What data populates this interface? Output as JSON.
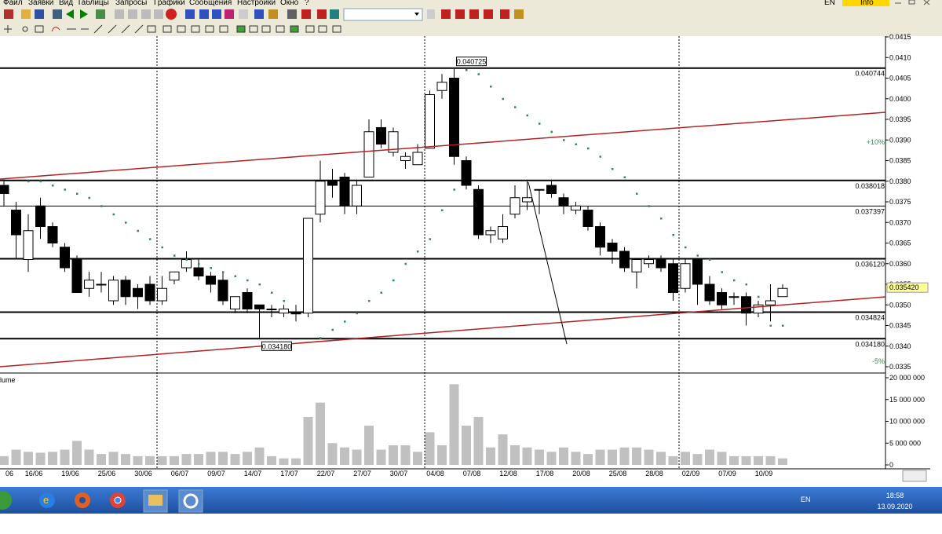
{
  "menu": [
    "Файл",
    "Заявки",
    "Вид",
    "Таблицы",
    "Запросы",
    "Графики",
    "Сообщения",
    "Настройки",
    "Окно",
    "?"
  ],
  "menu_right": {
    "lang": "EN",
    "info": "Info"
  },
  "chart_data": {
    "type": "candlestick",
    "up_color": "#ffffff",
    "down_color": "#000000",
    "categories": [
      "06",
      null,
      "16/06",
      null,
      null,
      "19/06",
      null,
      null,
      "25/06",
      null,
      null,
      "30/06",
      null,
      null,
      "06/07",
      null,
      null,
      "09/07",
      null,
      null,
      "14/07",
      null,
      null,
      "17/07",
      null,
      null,
      "22/07",
      null,
      null,
      "27/07",
      null,
      null,
      "30/07",
      null,
      null,
      "04/08",
      null,
      null,
      "07/08",
      null,
      null,
      "12/08",
      null,
      null,
      "17/08",
      null,
      null,
      "20/08",
      null,
      null,
      "25/08",
      null,
      null,
      "28/08",
      null,
      null,
      "02/09",
      null,
      null,
      "07/09",
      null,
      null,
      "10/09",
      null,
      null
    ],
    "ohlc": [
      [
        0.0379,
        0.038,
        0.0374,
        0.0377
      ],
      [
        0.0373,
        0.0375,
        0.0361,
        0.0367
      ],
      [
        0.0361,
        0.0372,
        0.0358,
        0.0368
      ],
      [
        0.0374,
        0.0376,
        0.0366,
        0.0369
      ],
      [
        0.0369,
        0.037,
        0.0364,
        0.0365
      ],
      [
        0.0364,
        0.0365,
        0.0358,
        0.0359
      ],
      [
        0.0361,
        0.0362,
        0.0353,
        0.0353
      ],
      [
        0.0354,
        0.0358,
        0.0352,
        0.0356
      ],
      [
        0.0355,
        0.0358,
        0.0353,
        0.0355
      ],
      [
        0.0351,
        0.0357,
        0.035,
        0.0356
      ],
      [
        0.0356,
        0.0357,
        0.035,
        0.0352
      ],
      [
        0.0354,
        0.0355,
        0.0349,
        0.0352
      ],
      [
        0.0355,
        0.0357,
        0.035,
        0.0351
      ],
      [
        0.0351,
        0.0357,
        0.035,
        0.0354
      ],
      [
        0.0356,
        0.0358,
        0.0355,
        0.0358
      ],
      [
        0.0359,
        0.0363,
        0.0358,
        0.0361
      ],
      [
        0.0359,
        0.0361,
        0.0356,
        0.0357
      ],
      [
        0.0357,
        0.0358,
        0.0353,
        0.0355
      ],
      [
        0.0356,
        0.0358,
        0.035,
        0.0351
      ],
      [
        0.0349,
        0.0352,
        0.0348,
        0.0352
      ],
      [
        0.0353,
        0.0354,
        0.0348,
        0.0349
      ],
      [
        0.035,
        0.035,
        0.03418,
        0.0349
      ],
      [
        0.0349,
        0.035,
        0.0347,
        0.0349
      ],
      [
        0.0348,
        0.035,
        0.0347,
        0.0349
      ],
      [
        0.0348,
        0.035,
        0.0346,
        0.0348
      ],
      [
        0.0348,
        0.0371,
        0.0347,
        0.0371
      ],
      [
        0.0372,
        0.0385,
        0.037,
        0.038
      ],
      [
        0.038,
        0.0383,
        0.0376,
        0.0379
      ],
      [
        0.0381,
        0.0382,
        0.0372,
        0.0374
      ],
      [
        0.0374,
        0.038,
        0.0372,
        0.0379
      ],
      [
        0.0381,
        0.0395,
        0.0381,
        0.0392
      ],
      [
        0.0393,
        0.0395,
        0.0388,
        0.0389
      ],
      [
        0.0387,
        0.0393,
        0.0386,
        0.0392
      ],
      [
        0.0385,
        0.0387,
        0.0383,
        0.0386
      ],
      [
        0.0384,
        0.0389,
        0.0384,
        0.0387
      ],
      [
        0.0388,
        0.0402,
        0.0388,
        0.0401
      ],
      [
        0.0402,
        0.0406,
        0.04,
        0.0404
      ],
      [
        0.0405,
        0.040725,
        0.0384,
        0.0386
      ],
      [
        0.0385,
        0.0386,
        0.0378,
        0.0379
      ],
      [
        0.0378,
        0.0379,
        0.0366,
        0.0367
      ],
      [
        0.0367,
        0.0369,
        0.0365,
        0.0368
      ],
      [
        0.0366,
        0.0372,
        0.0365,
        0.0369
      ],
      [
        0.0372,
        0.0379,
        0.0371,
        0.0376
      ],
      [
        0.0375,
        0.038,
        0.0373,
        0.0376
      ],
      [
        0.0378,
        0.0378,
        0.0372,
        0.0378
      ],
      [
        0.0379,
        0.038,
        0.0376,
        0.0377
      ],
      [
        0.0376,
        0.0377,
        0.0372,
        0.0374
      ],
      [
        0.0373,
        0.0375,
        0.0372,
        0.0374
      ],
      [
        0.0373,
        0.0374,
        0.0368,
        0.0369
      ],
      [
        0.0369,
        0.037,
        0.0362,
        0.0364
      ],
      [
        0.0365,
        0.0366,
        0.036,
        0.0363
      ],
      [
        0.0363,
        0.0364,
        0.0358,
        0.0359
      ],
      [
        0.0358,
        0.0361,
        0.0354,
        0.0361
      ],
      [
        0.036,
        0.0362,
        0.0359,
        0.0361
      ],
      [
        0.0361,
        0.0362,
        0.0358,
        0.0359
      ],
      [
        0.036,
        0.0361,
        0.0351,
        0.0353
      ],
      [
        0.0354,
        0.0361,
        0.0353,
        0.036
      ],
      [
        0.0361,
        0.0361,
        0.035,
        0.0355
      ],
      [
        0.0355,
        0.0357,
        0.035,
        0.0351
      ],
      [
        0.0353,
        0.0354,
        0.0349,
        0.035
      ],
      [
        0.0352,
        0.0353,
        0.035,
        0.0352
      ],
      [
        0.0352,
        0.0353,
        0.0345,
        0.0348
      ],
      [
        0.0348,
        0.0351,
        0.0347,
        0.035
      ],
      [
        0.035,
        0.0355,
        0.0346,
        0.0351
      ],
      [
        0.0352,
        0.0355,
        0.0352,
        0.0354
      ]
    ],
    "ylim": [
      0.0335,
      0.0415
    ],
    "yticks": [
      0.0415,
      {
        "value": 0.041,
        "label": "0.0410"
      },
      0.0405,
      {
        "value": 0.04,
        "label": "0.0400"
      },
      0.0395,
      {
        "value": 0.039,
        "label": "0.0390"
      },
      0.0385,
      {
        "value": 0.038,
        "label": "0.0380"
      },
      0.0375,
      {
        "value": 0.037,
        "label": "0.0370"
      },
      0.0365,
      {
        "value": 0.036,
        "label": "0.0360"
      },
      0.0355,
      {
        "value": 0.035,
        "label": "0.0350"
      },
      0.0345,
      {
        "value": 0.034,
        "label": "0.0340"
      },
      0.0335
    ],
    "levels": [
      0.040744,
      0.038018,
      0.037397,
      {
        "value": 0.03612,
        "label": "0.036120"
      },
      0.034824,
      {
        "value": 0.03418,
        "label": "0.034180"
      }
    ],
    "annotations": [
      {
        "value": 0.040725,
        "label": "0.040725"
      },
      {
        "value": 0.03418,
        "label": "0.034180"
      }
    ],
    "last": {
      "value": 0.03542,
      "label": "0.035420"
    },
    "percent_labels": [
      "+10%",
      "-5%"
    ],
    "sar": {
      "color": "#2e8b57",
      "values": [
        null,
        null,
        0.038,
        0.038,
        0.0379,
        0.0378,
        0.0377,
        0.0376,
        0.0374,
        0.0372,
        0.037,
        0.0368,
        0.0366,
        0.0364,
        0.0362,
        0.0361,
        0.036,
        0.0359,
        0.0358,
        0.0357,
        0.0356,
        0.0355,
        0.0353,
        0.0351,
        null,
        null,
        0.0342,
        0.0344,
        0.0346,
        0.0348,
        0.0351,
        0.0353,
        0.0356,
        0.036,
        0.0363,
        0.0366,
        0.0373,
        0.0378,
        0.0407,
        0.0406,
        0.0403,
        0.04,
        0.0398,
        0.0396,
        0.0394,
        0.0392,
        0.039,
        0.0389,
        0.0388,
        0.0386,
        0.0383,
        0.0381,
        0.0377,
        0.0374,
        0.0371,
        0.0367,
        0.0364,
        0.0362,
        0.0361,
        0.0358,
        0.0356,
        0.0355,
        0.0352,
        0.0345,
        0.0345
      ]
    }
  },
  "volume_chart": {
    "type": "bar",
    "title": "lume",
    "color": "#c0c0c0",
    "values": [
      2000000,
      3500000,
      3000000,
      2800000,
      3000000,
      3500000,
      5500000,
      3500000,
      2500000,
      3000000,
      2500000,
      2000000,
      2000000,
      2000000,
      2000000,
      2500000,
      2500000,
      3000000,
      3000000,
      2500000,
      3000000,
      4000000,
      2000000,
      1500000,
      1500000,
      11000000,
      14300000,
      5000000,
      4000000,
      3500000,
      9000000,
      3500000,
      4500000,
      4500000,
      3000000,
      7500000,
      4500000,
      18500000,
      9000000,
      11000000,
      4000000,
      7000000,
      4500000,
      4000000,
      3500000,
      3000000,
      4000000,
      3000000,
      2500000,
      3500000,
      3500000,
      4000000,
      4000000,
      3500000,
      3000000,
      2000000,
      3000000,
      2500000,
      3500000,
      3000000,
      2000000,
      2000000,
      2000000,
      2000000,
      1500000
    ],
    "ylim": [
      0,
      20000000
    ],
    "yticks": [
      {
        "value": 20000000,
        "label": "20 000 000"
      },
      {
        "value": 15000000,
        "label": "15 000 000"
      },
      {
        "value": 10000000,
        "label": "10 000 000"
      },
      {
        "value": 5000000,
        "label": "5 000 000"
      },
      0
    ]
  },
  "taskbar": {
    "lang": "EN",
    "time": "18:58",
    "date": "13.09.2020"
  }
}
